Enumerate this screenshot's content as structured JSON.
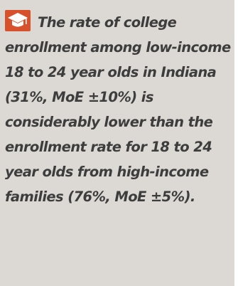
{
  "callout": {
    "icon": "graduation-cap-icon",
    "accent_color": "#d6512c",
    "background_color": "#dcd8d3",
    "text": "The rate of college enrollment among low-income 18 to 24 year olds in Indiana (31%, MoE ±10%) is considerably lower than the enrollment rate for 18 to 24 year olds from high-income families (76%, MoE ±5%)."
  }
}
